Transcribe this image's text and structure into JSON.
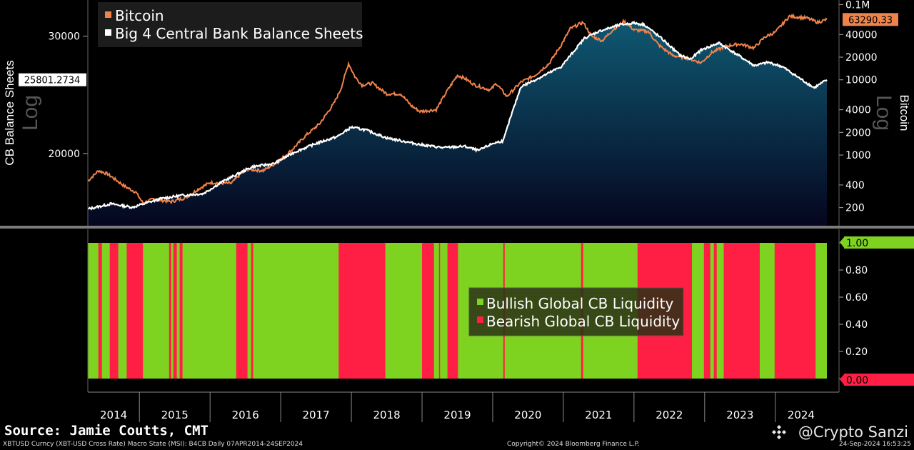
{
  "chart_data": [
    {
      "type": "area",
      "title": "",
      "left_axis": {
        "label": "CB Balance Sheets",
        "scale_note": "Log",
        "ticks": [
          "30000",
          "20000"
        ],
        "tick_values": [
          30000,
          20000
        ],
        "range": [
          15500,
          34000
        ],
        "current_value_label": "25801.2734",
        "current_value": 25801.2734
      },
      "right_axis": {
        "label": "Bitcoin",
        "scale_note": "Log",
        "ticks": [
          "0.1M",
          "40000",
          "20000",
          "10000",
          "4000",
          "2000",
          "1000",
          "400",
          "200"
        ],
        "tick_values": [
          100000,
          40000,
          20000,
          10000,
          4000,
          2000,
          1000,
          400,
          200
        ],
        "range": [
          110,
          115000
        ],
        "current_value_label": "63290.33",
        "current_value": 63290.33
      },
      "legend": [
        "Bitcoin",
        "Big 4 Central Bank Balance Sheets"
      ],
      "series": [
        {
          "name": "Bitcoin",
          "color": "#f0834a",
          "axis": "right",
          "points": [
            [
              2014.27,
              450
            ],
            [
              2014.42,
              620
            ],
            [
              2014.55,
              560
            ],
            [
              2014.8,
              380
            ],
            [
              2014.95,
              320
            ],
            [
              2015.05,
              230
            ],
            [
              2015.2,
              260
            ],
            [
              2015.45,
              240
            ],
            [
              2015.65,
              270
            ],
            [
              2015.85,
              360
            ],
            [
              2016.0,
              430
            ],
            [
              2016.3,
              420
            ],
            [
              2016.5,
              650
            ],
            [
              2016.75,
              620
            ],
            [
              2016.95,
              800
            ],
            [
              2017.15,
              1150
            ],
            [
              2017.35,
              1800
            ],
            [
              2017.55,
              2600
            ],
            [
              2017.75,
              4800
            ],
            [
              2017.85,
              7500
            ],
            [
              2017.96,
              16500
            ],
            [
              2018.05,
              11000
            ],
            [
              2018.15,
              8500
            ],
            [
              2018.3,
              9000
            ],
            [
              2018.5,
              6500
            ],
            [
              2018.7,
              6500
            ],
            [
              2018.85,
              4500
            ],
            [
              2018.97,
              3800
            ],
            [
              2019.2,
              4000
            ],
            [
              2019.35,
              7000
            ],
            [
              2019.5,
              11500
            ],
            [
              2019.6,
              10500
            ],
            [
              2019.75,
              8500
            ],
            [
              2019.97,
              7300
            ],
            [
              2020.05,
              9000
            ],
            [
              2020.2,
              6000
            ],
            [
              2020.4,
              9300
            ],
            [
              2020.6,
              11500
            ],
            [
              2020.8,
              16500
            ],
            [
              2020.97,
              29000
            ],
            [
              2021.1,
              48000
            ],
            [
              2021.28,
              58000
            ],
            [
              2021.4,
              38000
            ],
            [
              2021.55,
              33000
            ],
            [
              2021.7,
              46000
            ],
            [
              2021.86,
              60000
            ],
            [
              2022.0,
              46000
            ],
            [
              2022.2,
              44000
            ],
            [
              2022.35,
              29000
            ],
            [
              2022.55,
              21000
            ],
            [
              2022.75,
              19500
            ],
            [
              2022.95,
              16800
            ],
            [
              2023.1,
              23000
            ],
            [
              2023.3,
              28000
            ],
            [
              2023.5,
              30000
            ],
            [
              2023.7,
              26500
            ],
            [
              2023.85,
              37000
            ],
            [
              2024.0,
              43000
            ],
            [
              2024.2,
              70000
            ],
            [
              2024.45,
              66000
            ],
            [
              2024.6,
              58000
            ],
            [
              2024.73,
              63290
            ]
          ]
        },
        {
          "name": "Big 4 Central Bank Balance Sheets",
          "color": "#ffffff",
          "fill_top": "#0f5872",
          "fill_bottom": "#05051e",
          "axis": "left",
          "points": [
            [
              2014.27,
              16500
            ],
            [
              2014.6,
              16800
            ],
            [
              2014.9,
              16600
            ],
            [
              2015.3,
              17100
            ],
            [
              2015.6,
              17300
            ],
            [
              2015.9,
              17400
            ],
            [
              2016.2,
              18200
            ],
            [
              2016.6,
              19100
            ],
            [
              2016.9,
              19300
            ],
            [
              2017.2,
              20100
            ],
            [
              2017.5,
              20700
            ],
            [
              2017.8,
              21200
            ],
            [
              2018.0,
              21900
            ],
            [
              2018.2,
              21700
            ],
            [
              2018.5,
              21100
            ],
            [
              2018.8,
              20800
            ],
            [
              2019.0,
              20600
            ],
            [
              2019.3,
              20400
            ],
            [
              2019.6,
              20500
            ],
            [
              2019.8,
              20200
            ],
            [
              2020.0,
              20700
            ],
            [
              2020.15,
              20900
            ],
            [
              2020.25,
              22600
            ],
            [
              2020.4,
              25200
            ],
            [
              2020.7,
              26100
            ],
            [
              2020.97,
              27000
            ],
            [
              2021.3,
              29800
            ],
            [
              2021.5,
              30500
            ],
            [
              2021.8,
              31200
            ],
            [
              2022.0,
              31400
            ],
            [
              2022.15,
              31200
            ],
            [
              2022.4,
              29700
            ],
            [
              2022.65,
              28100
            ],
            [
              2022.8,
              27700
            ],
            [
              2022.95,
              28600
            ],
            [
              2023.2,
              29300
            ],
            [
              2023.45,
              28200
            ],
            [
              2023.7,
              27100
            ],
            [
              2023.9,
              27400
            ],
            [
              2024.1,
              27000
            ],
            [
              2024.4,
              25700
            ],
            [
              2024.55,
              25100
            ],
            [
              2024.73,
              25801
            ]
          ]
        }
      ]
    },
    {
      "type": "bar",
      "title": "",
      "y_ticks": [
        "1.00",
        "0.80",
        "0.60",
        "0.40",
        "0.20",
        "0.00"
      ],
      "y_tick_values": [
        1.0,
        0.8,
        0.6,
        0.4,
        0.2,
        0.0
      ],
      "ylim": [
        0,
        1
      ],
      "current_value_labels": [
        "1.00",
        "0.00"
      ],
      "legend": [
        {
          "label": "Bullish Global CB Liquidity",
          "color": "#7ed321"
        },
        {
          "label": "Bearish Global CB Liquidity",
          "color": "#ff1f44"
        }
      ],
      "bearish_periods": [
        [
          2014.42,
          2014.47
        ],
        [
          2014.58,
          2014.7
        ],
        [
          2014.82,
          2015.05
        ],
        [
          2015.42,
          2015.45
        ],
        [
          2015.48,
          2015.53
        ],
        [
          2015.57,
          2015.61
        ],
        [
          2016.37,
          2016.53
        ],
        [
          2016.58,
          2016.61
        ],
        [
          2017.82,
          2018.48
        ],
        [
          2019.0,
          2019.17
        ],
        [
          2019.24,
          2019.25
        ],
        [
          2019.36,
          2019.51
        ],
        [
          2020.15,
          2020.17
        ],
        [
          2021.25,
          2021.28
        ],
        [
          2022.05,
          2022.82
        ],
        [
          2022.99,
          2023.08
        ],
        [
          2023.13,
          2023.17
        ],
        [
          2023.27,
          2023.78
        ],
        [
          2023.99,
          2024.57
        ]
      ],
      "x_ticks": [
        "2014",
        "2015",
        "2016",
        "2017",
        "2018",
        "2019",
        "2020",
        "2021",
        "2022",
        "2023",
        "2024"
      ],
      "x_tick_values": [
        2014,
        2015,
        2016,
        2017,
        2018,
        2019,
        2020,
        2021,
        2022,
        2023,
        2024
      ],
      "x_range": [
        2014.27,
        2024.73
      ]
    }
  ],
  "colors": {
    "bitcoin_line": "#f0834a",
    "balance_line": "#ffffff",
    "bullish": "#7ed321",
    "bearish": "#ff1f44",
    "label_box": "#000000",
    "grid_divider": "#7c7c7c"
  },
  "footer": {
    "source": "Source: Jamie Coutts, CMT",
    "ticker_line": "XBTUSD Curncy (XBT-USD Cross Rate) Macro State (MSI): B4CB  Daily 07APR2014-24SEP2024",
    "copyright": "Copyright© 2024 Bloomberg Finance L.P.",
    "timestamp": "24-Sep-2024 16:53:25",
    "watermark": "@Crypto Sanzi",
    "watermark_icon": "binance-logo-icon"
  }
}
